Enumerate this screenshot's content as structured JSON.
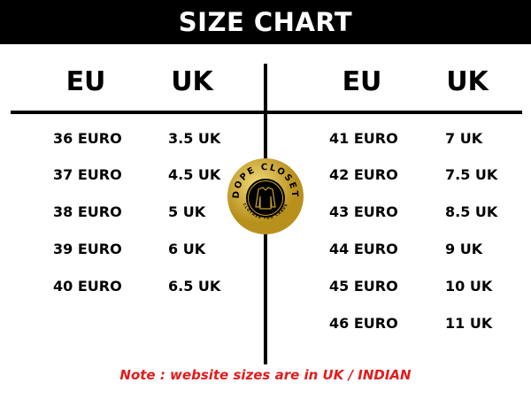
{
  "title": "SIZE CHART",
  "left": {
    "headers": [
      "EU",
      "UK"
    ],
    "rows": [
      [
        "36 EURO",
        "3.5 UK"
      ],
      [
        "37 EURO",
        "4.5 UK"
      ],
      [
        "38 EURO",
        "5 UK"
      ],
      [
        "39 EURO",
        "6 UK"
      ],
      [
        "40 EURO",
        "6.5 UK"
      ]
    ]
  },
  "right": {
    "headers": [
      "EU",
      "UK"
    ],
    "rows": [
      [
        "41 EURO",
        "7 UK"
      ],
      [
        "42 EURO",
        "7.5 UK"
      ],
      [
        "43 EURO",
        "8.5 UK"
      ],
      [
        "44 EURO",
        "9 UK"
      ],
      [
        "45 EURO",
        "10 UK"
      ],
      [
        "46 EURO",
        "11 UK"
      ]
    ]
  },
  "logo": {
    "name": "DOPE CLOSET",
    "tagline": "CLOTHES YOU CRAVE"
  },
  "note": "Note : website sizes are in UK / INDIAN",
  "colors": {
    "header_bg": "#000000",
    "note": "#e31b1b",
    "logo_gold": "#c9a227"
  }
}
